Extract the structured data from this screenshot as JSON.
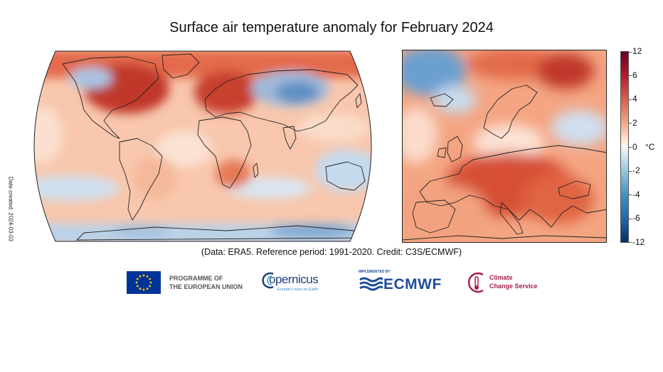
{
  "title": "Surface air temperature anomaly for February 2024",
  "date_created": "Date created: 2024-03-03",
  "caption": "(Data: ERA5.  Reference period: 1991-2020.  Credit: C3S/ECMWF)",
  "colorbar": {
    "ticks": [
      "12",
      "6",
      "4",
      "2",
      "0",
      "-2",
      "-4",
      "-6",
      "-12"
    ],
    "unit": "°C"
  },
  "logos": {
    "eu_line1": "PROGRAMME OF",
    "eu_line2": "THE EUROPEAN UNION",
    "copernicus": "opernicus",
    "copernicus_tagline": "Europe's eyes on Earth",
    "ecmwf_small": "IMPLEMENTED BY",
    "ecmwf": "ECMWF",
    "c3s_line1": "Climate",
    "c3s_line2": "Change Service"
  },
  "colors": {
    "warm_strong": "#b2182b",
    "warm": "#ef8a62",
    "warm_light": "#fddbc7",
    "neutral": "#f7f7f7",
    "cool_light": "#d1e5f0",
    "cool": "#4393c3",
    "cool_strong": "#2166ac"
  }
}
